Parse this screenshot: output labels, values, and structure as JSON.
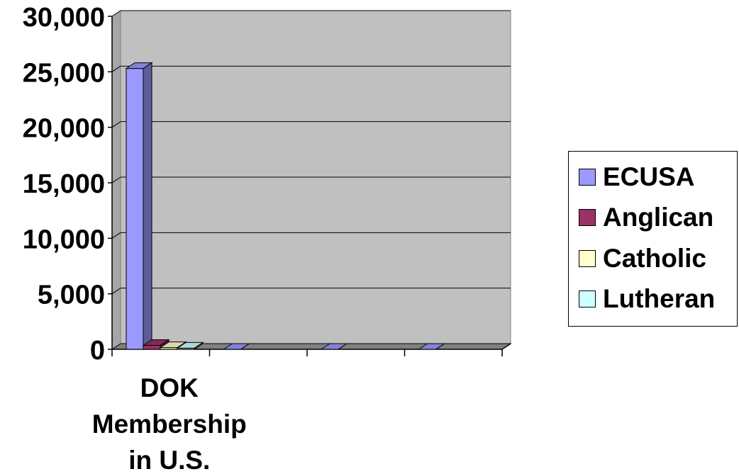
{
  "chart_data": {
    "type": "bar",
    "categories": [
      "DOK Membership in U.S.",
      "",
      "",
      ""
    ],
    "category_label_lines": [
      [
        "DOK",
        "Membership",
        "in U.S."
      ]
    ],
    "series": [
      {
        "name": "ECUSA",
        "color": "#9999ff",
        "values": [
          25300,
          0,
          0,
          0
        ]
      },
      {
        "name": "Anglican",
        "color": "#993366",
        "values": [
          350,
          null,
          null,
          null
        ]
      },
      {
        "name": "Catholic",
        "color": "#ffffcc",
        "values": [
          150,
          null,
          null,
          null
        ]
      },
      {
        "name": "Lutheran",
        "color": "#ccffff",
        "values": [
          100,
          null,
          null,
          null
        ]
      }
    ],
    "ylim": [
      0,
      30000
    ],
    "yticks": [
      0,
      5000,
      10000,
      15000,
      20000,
      25000,
      30000
    ],
    "ytick_labels": [
      "0",
      "5,000",
      "10,000",
      "15,000",
      "20,000",
      "25,000",
      "30,000"
    ],
    "grid": true,
    "legend": "right",
    "plot_background": "#c0c0c0",
    "style": "3d"
  }
}
